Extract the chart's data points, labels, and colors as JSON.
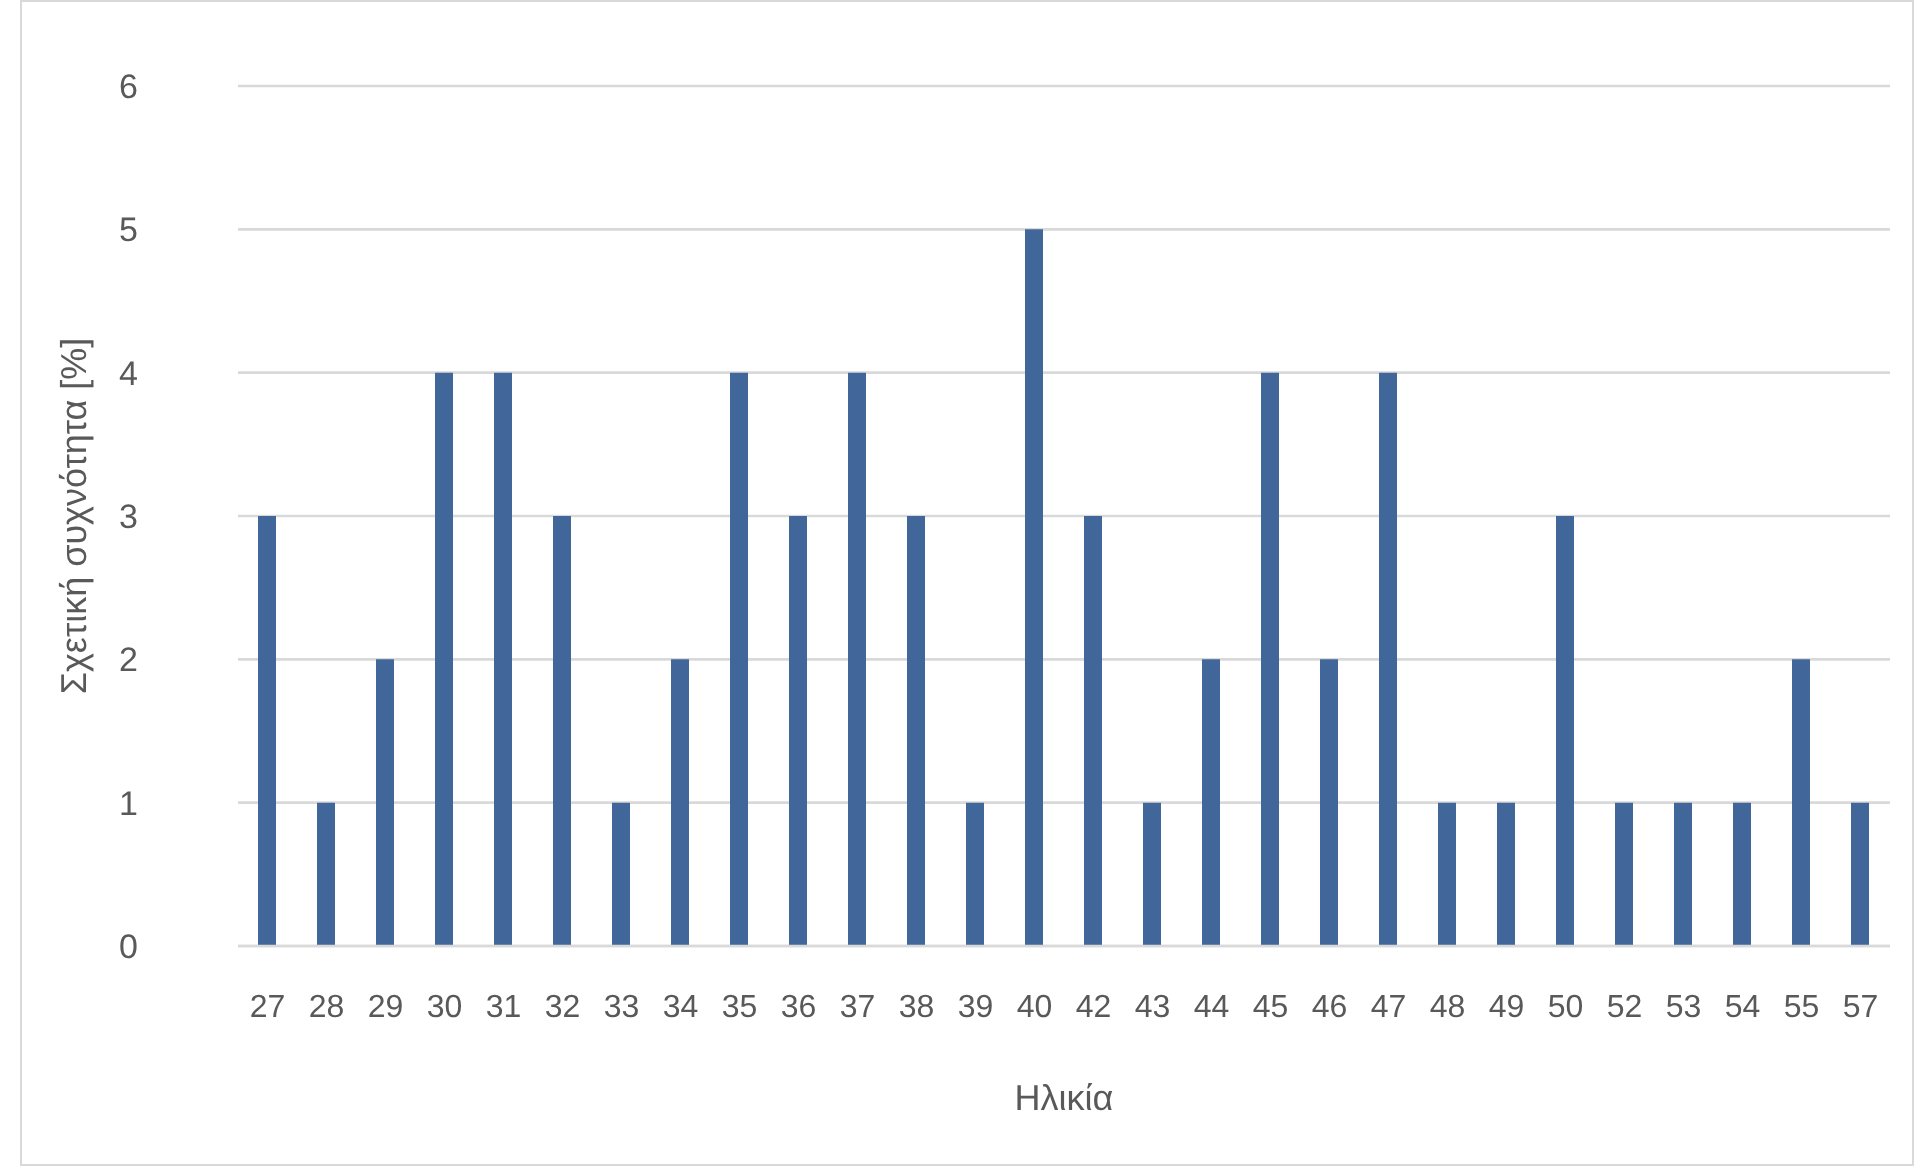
{
  "chart_data": {
    "type": "bar",
    "xlabel": "Ηλικία",
    "ylabel": "Σχετική συχνότητα [%]",
    "categories": [
      "27",
      "28",
      "29",
      "30",
      "31",
      "32",
      "33",
      "34",
      "35",
      "36",
      "37",
      "38",
      "39",
      "40",
      "42",
      "43",
      "44",
      "45",
      "46",
      "47",
      "48",
      "49",
      "50",
      "52",
      "53",
      "54",
      "55",
      "57"
    ],
    "values": [
      3,
      1,
      2,
      4,
      4,
      3,
      1,
      2,
      4,
      3,
      4,
      3,
      1,
      5,
      3,
      1,
      2,
      4,
      2,
      4,
      1,
      1,
      3,
      1,
      1,
      1,
      2,
      1
    ],
    "color": "#41679a",
    "ylim": [
      0,
      6
    ],
    "yticks": [
      0,
      1,
      2,
      3,
      4,
      5,
      6
    ],
    "grid": "y"
  }
}
